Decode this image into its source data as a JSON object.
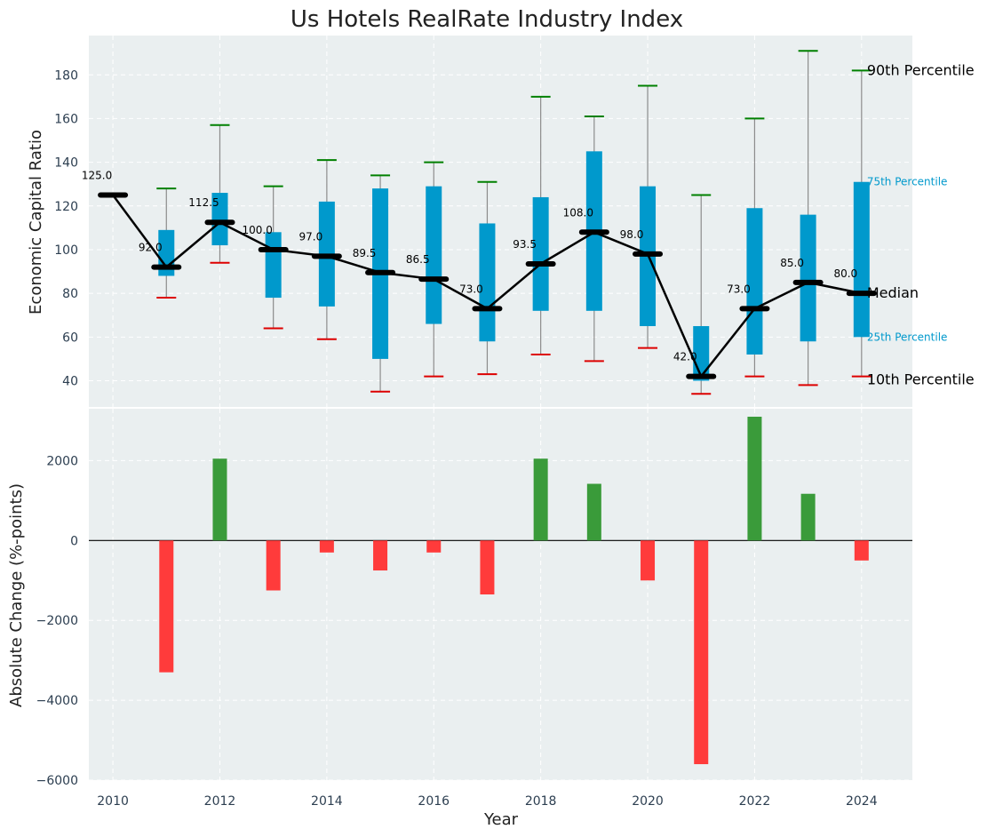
{
  "chart_data": {
    "title": "Us Hotels RealRate Industry Index",
    "xlabel": "Year",
    "x_ticks": [
      "2010",
      "2012",
      "2014",
      "2016",
      "2018",
      "2020",
      "2022",
      "2024"
    ],
    "colors": {
      "panel_bg": "#eaeff0",
      "grid": "#ffffff",
      "box": "#0099cc",
      "whisker": "#8c8c8c",
      "cap_high": "#008000",
      "cap_low": "#dd0000",
      "median_line": "#000000",
      "pos_bar": "#3a9b3a",
      "neg_bar": "#ff3b3b",
      "tick_text": "#2c3e50"
    },
    "top": {
      "type": "box-whisker",
      "ylabel": "Economic Capital Ratio",
      "ylim": [
        28,
        198
      ],
      "yticks": [
        "40",
        "60",
        "80",
        "100",
        "120",
        "140",
        "160",
        "180"
      ],
      "years": [
        2010,
        2011,
        2012,
        2013,
        2014,
        2015,
        2016,
        2017,
        2018,
        2019,
        2020,
        2021,
        2022,
        2023,
        2024
      ],
      "median": [
        125.0,
        92.0,
        112.5,
        100.0,
        97.0,
        89.5,
        86.5,
        73.0,
        93.5,
        108.0,
        98.0,
        42.0,
        73.0,
        85.0,
        80.0
      ],
      "median_labels": [
        "125.0",
        "92.0",
        "112.5",
        "100.0",
        "97.0",
        "89.5",
        "86.5",
        "73.0",
        "93.5",
        "108.0",
        "98.0",
        "42.0",
        "73.0",
        "85.0",
        "80.0"
      ],
      "p25": [
        null,
        88,
        102,
        78,
        74,
        50,
        66,
        58,
        72,
        72,
        65,
        40,
        52,
        58,
        60
      ],
      "p75": [
        null,
        109,
        126,
        108,
        122,
        128,
        129,
        112,
        124,
        145,
        129,
        65,
        119,
        116,
        131
      ],
      "p10": [
        null,
        78,
        94,
        64,
        59,
        35,
        42,
        43,
        52,
        49,
        55,
        34,
        42,
        38,
        42
      ],
      "p90": [
        null,
        128,
        157,
        129,
        141,
        134,
        140,
        131,
        170,
        161,
        175,
        125,
        160,
        191,
        182
      ],
      "legend": {
        "p90": "90th Percentile",
        "p75": "75th Percentile",
        "median": "Median",
        "p25": "25th Percentile",
        "p10": "10th Percentile"
      }
    },
    "bottom": {
      "type": "bar",
      "ylabel": "Absolute Change (%-points)",
      "ylim": [
        -6000,
        3300
      ],
      "yticks": [
        "2000",
        "0",
        "−2000",
        "−4000",
        "−6000"
      ],
      "years": [
        2011,
        2012,
        2013,
        2014,
        2015,
        2016,
        2017,
        2018,
        2019,
        2020,
        2021,
        2022,
        2023,
        2024
      ],
      "values": [
        -3300,
        2050,
        -1250,
        -300,
        -750,
        -300,
        -1350,
        2050,
        1420,
        -1000,
        -5600,
        3100,
        1170,
        -500
      ]
    }
  }
}
